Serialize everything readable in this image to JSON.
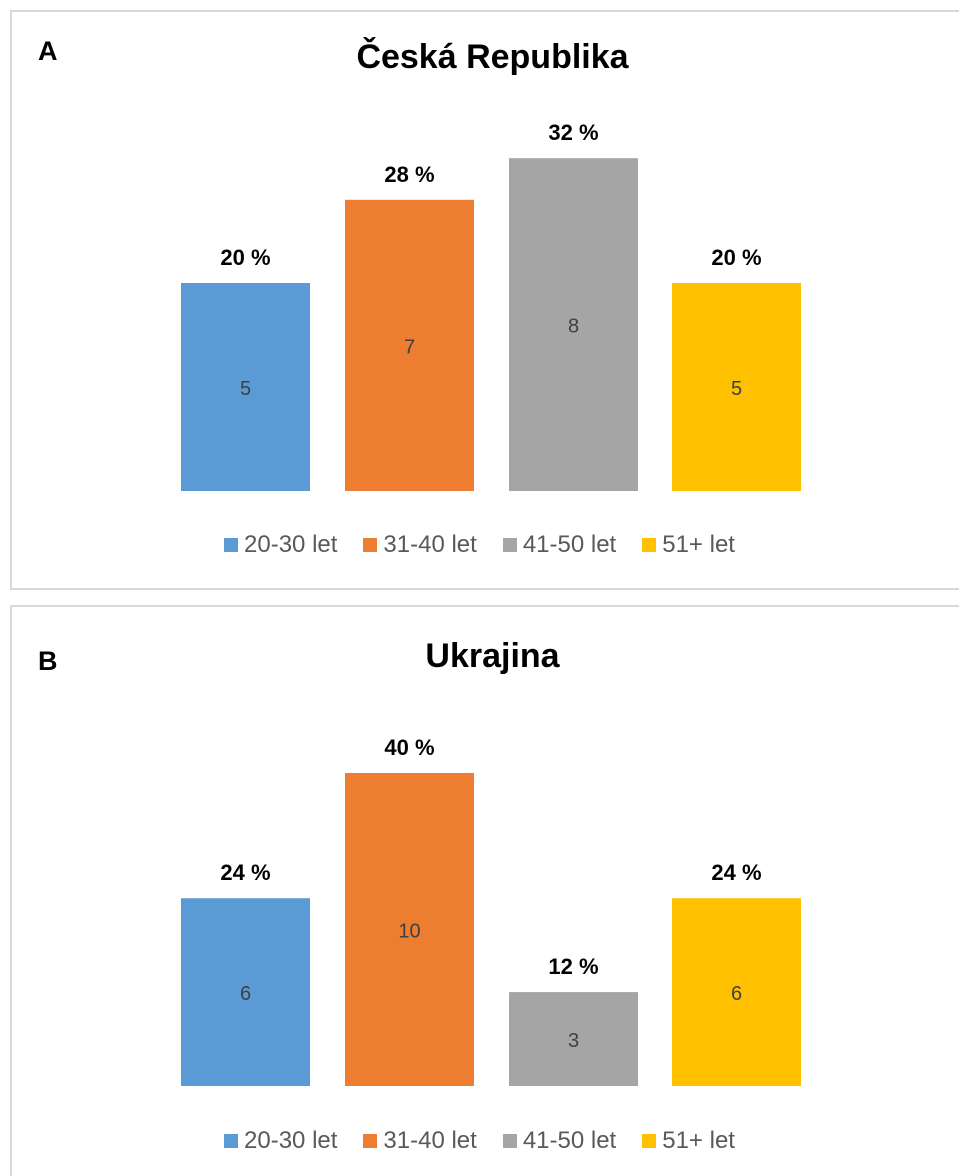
{
  "chart_data": [
    {
      "type": "bar",
      "panel_label": "A",
      "title": "Česká Republika",
      "categories": [
        "20-30 let",
        "31-40 let",
        "41-50 let",
        "51+ let"
      ],
      "values": [
        5,
        7,
        8,
        5
      ],
      "percent_labels": [
        "20 %",
        "28 %",
        "32 %",
        "20 %"
      ],
      "colors": [
        "#5b9bd5",
        "#ed7d31",
        "#a5a5a5",
        "#ffc000"
      ],
      "legend_position": "bottom",
      "grid": false
    },
    {
      "type": "bar",
      "panel_label": "B",
      "title": "Ukrajina",
      "categories": [
        "20-30 let",
        "31-40 let",
        "41-50 let",
        "51+ let"
      ],
      "values": [
        6,
        10,
        3,
        6
      ],
      "percent_labels": [
        "24 %",
        "40 %",
        "12 %",
        "24 %"
      ],
      "colors": [
        "#5b9bd5",
        "#ed7d31",
        "#a5a5a5",
        "#ffc000"
      ],
      "legend_position": "bottom",
      "grid": false
    }
  ]
}
